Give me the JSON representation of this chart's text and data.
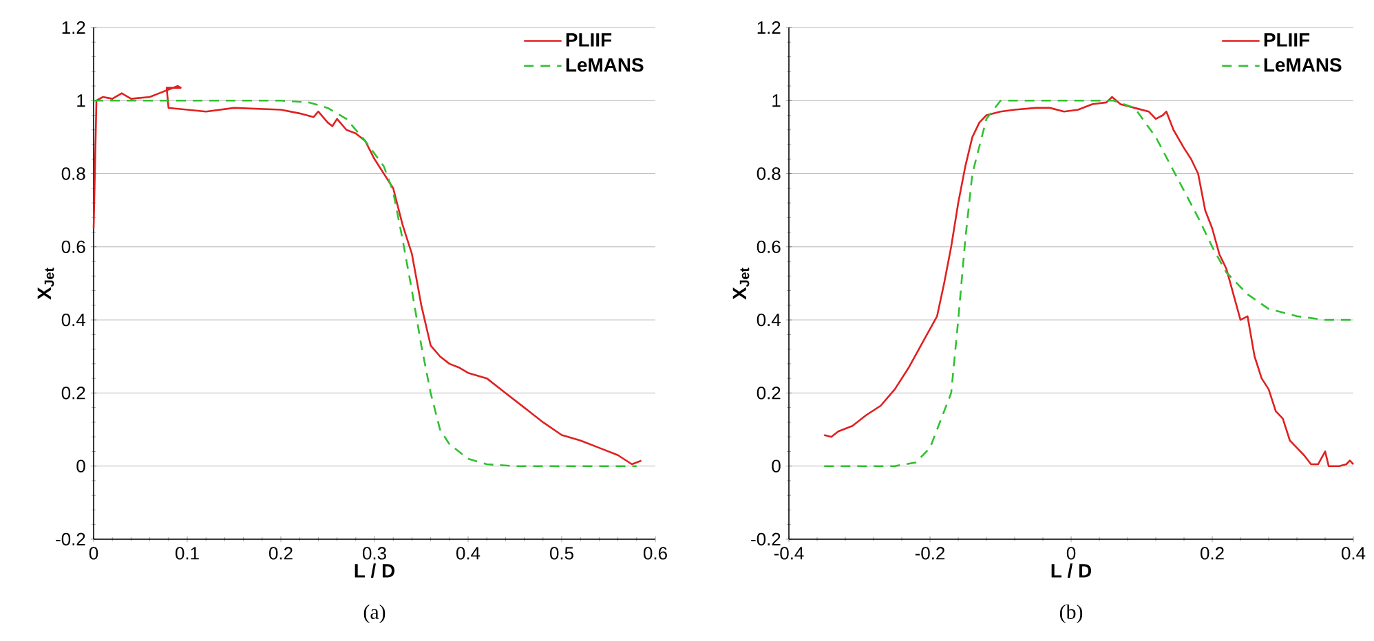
{
  "chart_data": [
    {
      "type": "line",
      "xlabel": "L / D",
      "ylabel": "X$_{Jet}$",
      "xlim": [
        0,
        0.6
      ],
      "ylim": [
        -0.2,
        1.2
      ],
      "xticks": [
        0,
        0.1,
        0.2,
        0.3,
        0.4,
        0.5,
        0.6
      ],
      "yticks": [
        -0.2,
        0,
        0.2,
        0.4,
        0.6,
        0.8,
        1,
        1.2
      ],
      "grid": "y",
      "legend": "top right",
      "annotations": [
        "(a)"
      ],
      "series": [
        {
          "name": "PLIIF",
          "color": "#e02020",
          "line_style": "solid",
          "x": [
            0,
            0.003,
            0.01,
            0.02,
            0.03,
            0.04,
            0.06,
            0.07,
            0.08,
            0.09,
            0.093,
            0.078,
            0.08,
            0.1,
            0.12,
            0.15,
            0.2,
            0.22,
            0.235,
            0.24,
            0.25,
            0.255,
            0.26,
            0.27,
            0.28,
            0.29,
            0.3,
            0.31,
            0.32,
            0.33,
            0.34,
            0.35,
            0.36,
            0.37,
            0.38,
            0.39,
            0.4,
            0.42,
            0.44,
            0.46,
            0.48,
            0.5,
            0.52,
            0.54,
            0.56,
            0.575,
            0.585
          ],
          "values": [
            0.65,
            1.0,
            1.01,
            1.005,
            1.02,
            1.005,
            1.01,
            1.02,
            1.03,
            1.04,
            1.035,
            1.035,
            0.98,
            0.975,
            0.97,
            0.98,
            0.975,
            0.965,
            0.955,
            0.97,
            0.94,
            0.93,
            0.95,
            0.92,
            0.91,
            0.89,
            0.84,
            0.8,
            0.76,
            0.66,
            0.58,
            0.44,
            0.33,
            0.3,
            0.28,
            0.27,
            0.255,
            0.24,
            0.2,
            0.16,
            0.12,
            0.085,
            0.07,
            0.05,
            0.03,
            0.005,
            0.015
          ]
        },
        {
          "name": "LeMANS",
          "color": "#30c030",
          "line_style": "dashed",
          "x": [
            0,
            0.2,
            0.23,
            0.25,
            0.27,
            0.29,
            0.31,
            0.32,
            0.33,
            0.34,
            0.35,
            0.36,
            0.37,
            0.38,
            0.4,
            0.42,
            0.45,
            0.58
          ],
          "values": [
            1,
            1,
            0.995,
            0.98,
            0.95,
            0.89,
            0.82,
            0.75,
            0.62,
            0.48,
            0.33,
            0.2,
            0.1,
            0.06,
            0.02,
            0.005,
            0,
            0
          ]
        }
      ]
    },
    {
      "type": "line",
      "xlabel": "L / D",
      "ylabel": "X$_{Jet}$",
      "xlim": [
        -0.4,
        0.4
      ],
      "ylim": [
        -0.2,
        1.2
      ],
      "xticks": [
        -0.4,
        -0.2,
        0,
        0.2,
        0.4
      ],
      "yticks": [
        -0.2,
        0,
        0.2,
        0.4,
        0.6,
        0.8,
        1,
        1.2
      ],
      "grid": "y",
      "legend": "top right",
      "annotations": [
        "(b)"
      ],
      "series": [
        {
          "name": "PLIIF",
          "color": "#e02020",
          "line_style": "solid",
          "x": [
            -0.35,
            -0.34,
            -0.33,
            -0.31,
            -0.29,
            -0.27,
            -0.25,
            -0.23,
            -0.21,
            -0.19,
            -0.18,
            -0.17,
            -0.16,
            -0.15,
            -0.14,
            -0.13,
            -0.12,
            -0.1,
            -0.08,
            -0.05,
            -0.03,
            -0.01,
            0.01,
            0.03,
            0.05,
            0.058,
            0.07,
            0.09,
            0.11,
            0.12,
            0.13,
            0.135,
            0.145,
            0.16,
            0.17,
            0.18,
            0.19,
            0.2,
            0.21,
            0.22,
            0.23,
            0.24,
            0.25,
            0.26,
            0.27,
            0.28,
            0.29,
            0.3,
            0.31,
            0.32,
            0.33,
            0.34,
            0.35,
            0.36,
            0.365,
            0.38,
            0.39,
            0.395,
            0.4
          ],
          "values": [
            0.085,
            0.08,
            0.095,
            0.11,
            0.14,
            0.165,
            0.21,
            0.27,
            0.34,
            0.41,
            0.5,
            0.6,
            0.72,
            0.82,
            0.9,
            0.94,
            0.96,
            0.97,
            0.975,
            0.98,
            0.98,
            0.97,
            0.975,
            0.99,
            0.995,
            1.01,
            0.99,
            0.98,
            0.97,
            0.95,
            0.96,
            0.97,
            0.92,
            0.87,
            0.84,
            0.8,
            0.7,
            0.65,
            0.58,
            0.54,
            0.47,
            0.4,
            0.41,
            0.3,
            0.24,
            0.21,
            0.15,
            0.13,
            0.07,
            0.05,
            0.03,
            0.005,
            0.005,
            0.04,
            0,
            0,
            0.005,
            0.015,
            0.005
          ]
        },
        {
          "name": "LeMANS",
          "color": "#30c030",
          "line_style": "dashed",
          "x": [
            -0.35,
            -0.25,
            -0.22,
            -0.2,
            -0.19,
            -0.17,
            -0.16,
            -0.15,
            -0.14,
            -0.12,
            -0.1,
            0.06,
            0.09,
            0.12,
            0.15,
            0.18,
            0.2,
            0.22,
            0.25,
            0.28,
            0.32,
            0.36,
            0.4
          ],
          "values": [
            0,
            0,
            0.01,
            0.05,
            0.1,
            0.2,
            0.4,
            0.62,
            0.8,
            0.95,
            1,
            1,
            0.98,
            0.9,
            0.79,
            0.68,
            0.6,
            0.53,
            0.47,
            0.43,
            0.41,
            0.4,
            0.4
          ]
        }
      ]
    }
  ]
}
